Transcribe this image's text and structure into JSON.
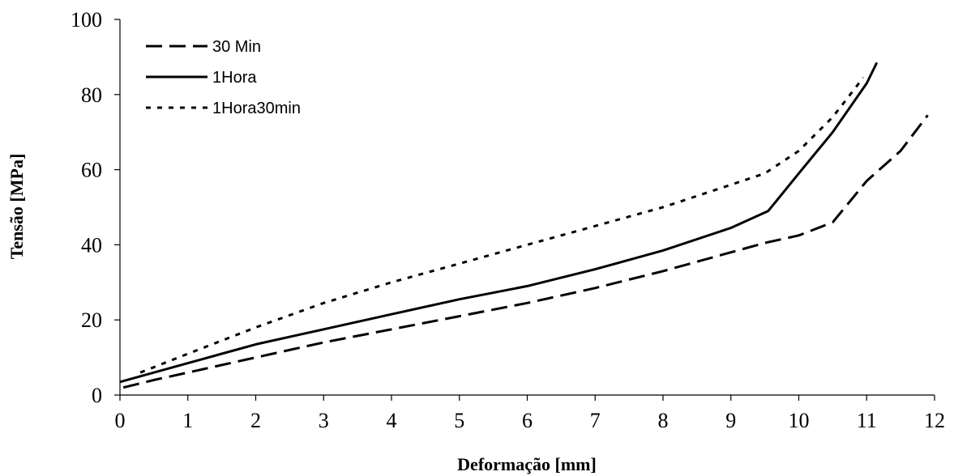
{
  "chart_data": {
    "type": "line",
    "title": "",
    "xlabel": "Deformação [mm]",
    "ylabel": "Tensão [MPa]",
    "xlim": [
      0,
      12
    ],
    "ylim": [
      0,
      100
    ],
    "xticks": [
      0,
      1,
      2,
      3,
      4,
      5,
      6,
      7,
      8,
      9,
      10,
      11,
      12
    ],
    "yticks": [
      0,
      20,
      40,
      60,
      80,
      100
    ],
    "grid": false,
    "legend_position": "top-left",
    "series": [
      {
        "name": "30 Min",
        "dash": "dashed",
        "color": "#000000",
        "points": [
          [
            0.05,
            2
          ],
          [
            0.5,
            4
          ],
          [
            1,
            6
          ],
          [
            1.5,
            8
          ],
          [
            2,
            10
          ],
          [
            3,
            14
          ],
          [
            4,
            17.5
          ],
          [
            5,
            21
          ],
          [
            6,
            24.5
          ],
          [
            7,
            28.5
          ],
          [
            8,
            33
          ],
          [
            9,
            38
          ],
          [
            9.5,
            40.5
          ],
          [
            10,
            42.5
          ],
          [
            10.5,
            46
          ],
          [
            11,
            57
          ],
          [
            11.5,
            65
          ],
          [
            11.9,
            74.5
          ]
        ]
      },
      {
        "name": "1Hora",
        "dash": "solid",
        "color": "#000000",
        "points": [
          [
            0,
            3.5
          ],
          [
            0.5,
            6
          ],
          [
            1,
            8.5
          ],
          [
            1.5,
            11
          ],
          [
            2,
            13.5
          ],
          [
            3,
            17.5
          ],
          [
            4,
            21.5
          ],
          [
            5,
            25.5
          ],
          [
            6,
            29
          ],
          [
            7,
            33.5
          ],
          [
            8,
            38.5
          ],
          [
            9,
            44.5
          ],
          [
            9.55,
            49
          ],
          [
            10,
            59
          ],
          [
            10.5,
            70
          ],
          [
            11,
            83
          ],
          [
            11.15,
            88.5
          ]
        ]
      },
      {
        "name": "1Hora30min",
        "dash": "dotted",
        "color": "#000000",
        "points": [
          [
            0.3,
            6
          ],
          [
            1,
            11
          ],
          [
            2,
            18
          ],
          [
            3,
            24.5
          ],
          [
            4,
            30
          ],
          [
            5,
            35
          ],
          [
            6,
            40
          ],
          [
            7,
            45
          ],
          [
            8,
            50
          ],
          [
            9,
            56
          ],
          [
            9.5,
            59
          ],
          [
            10,
            65
          ],
          [
            10.5,
            74
          ],
          [
            10.95,
            84.5
          ]
        ]
      }
    ]
  }
}
